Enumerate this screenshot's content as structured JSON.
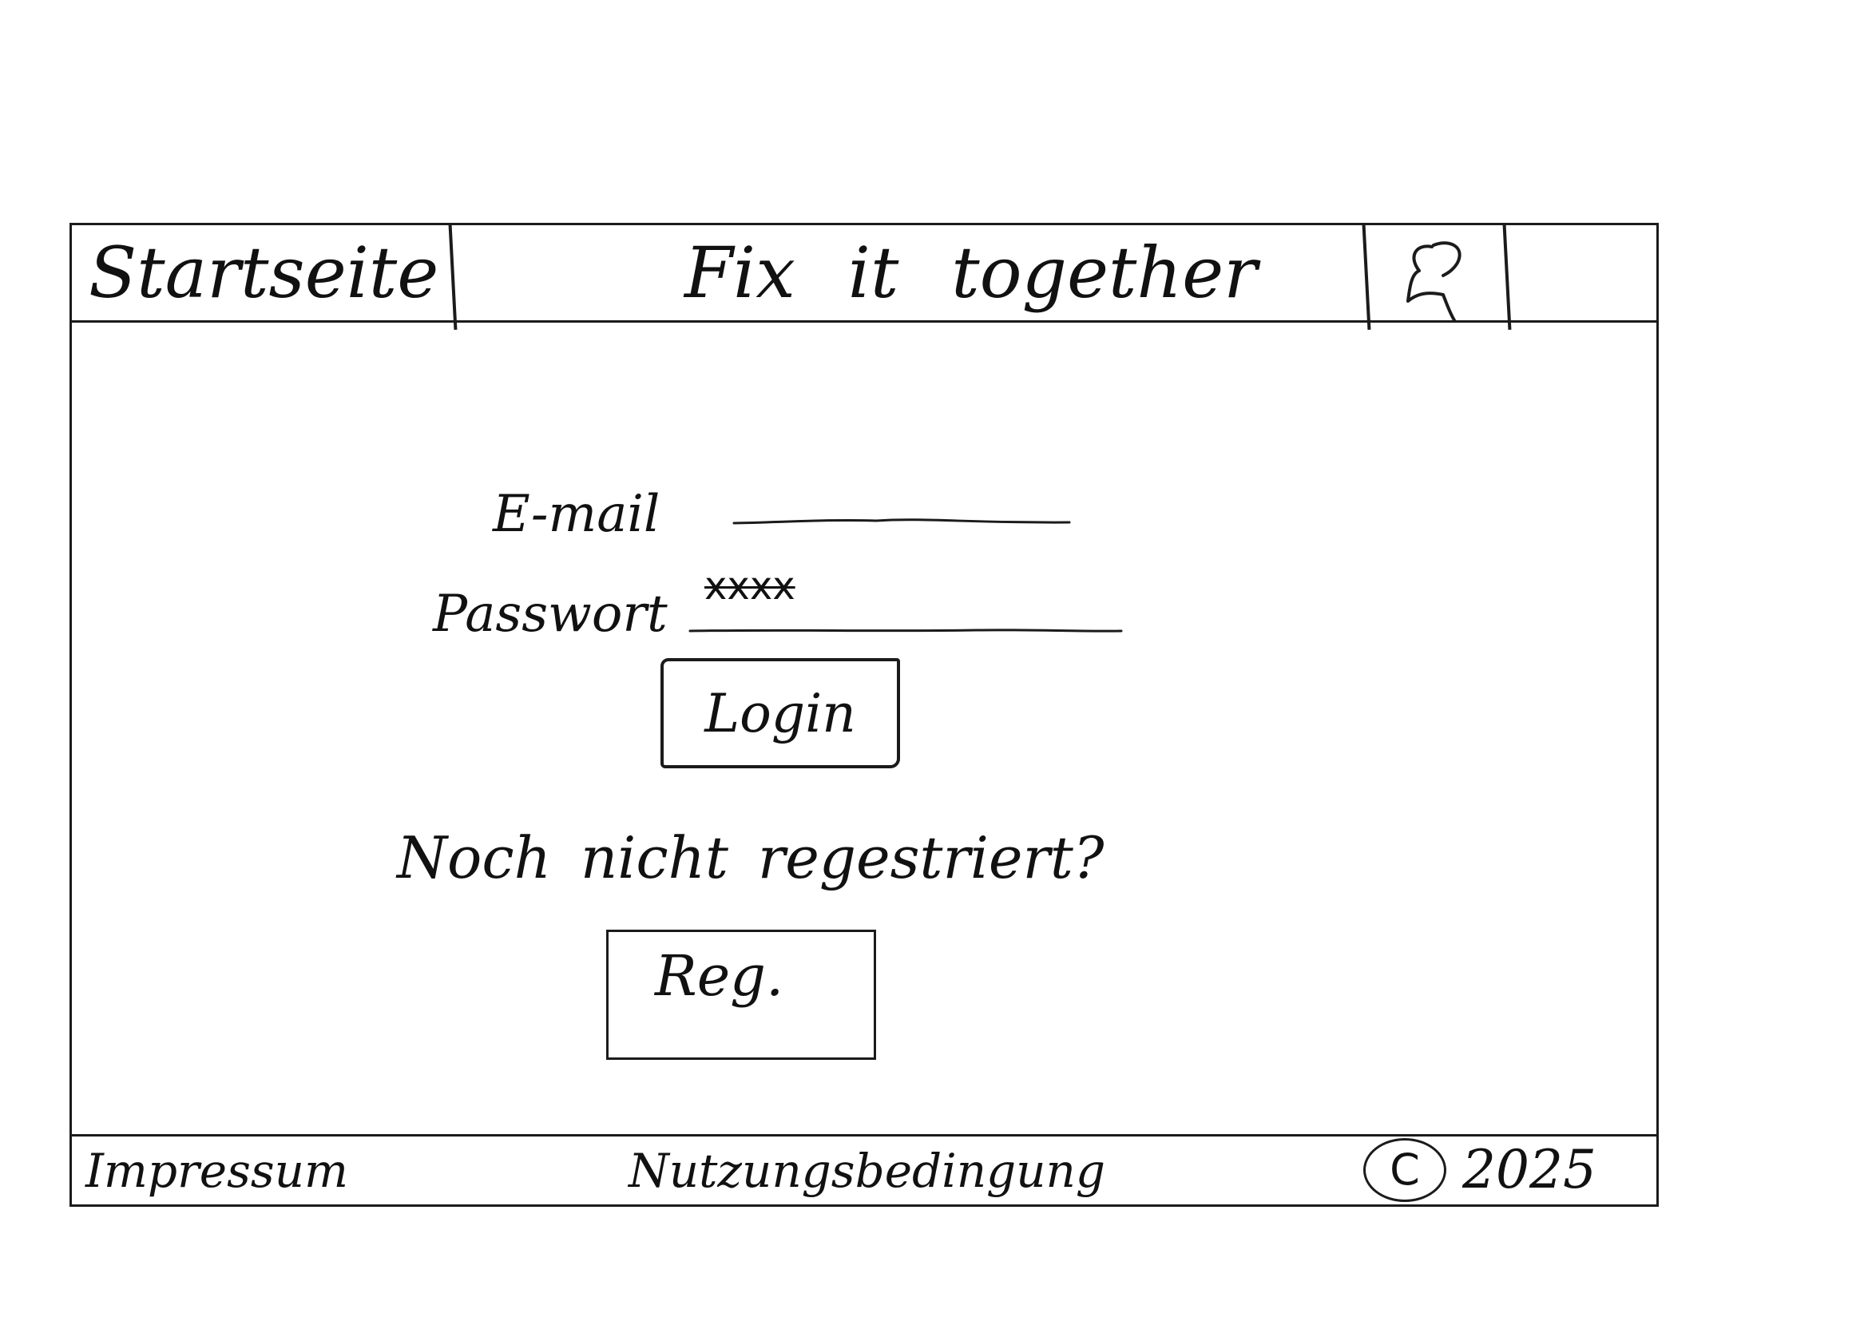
{
  "header": {
    "nav_home": "Startseite",
    "title": "Fix it together",
    "profile_icon": "user-profile-icon"
  },
  "login_form": {
    "email_label": "E-mail",
    "email_value": "",
    "password_label": "Passwort",
    "password_value": "xxxx",
    "login_label": "Login"
  },
  "register": {
    "prompt": "Noch nicht regestriert?",
    "button_label": "Reg."
  },
  "footer": {
    "imprint": "Impressum",
    "terms": "Nutzungsbedingung",
    "copyright_symbol": "C",
    "year": "2025"
  }
}
